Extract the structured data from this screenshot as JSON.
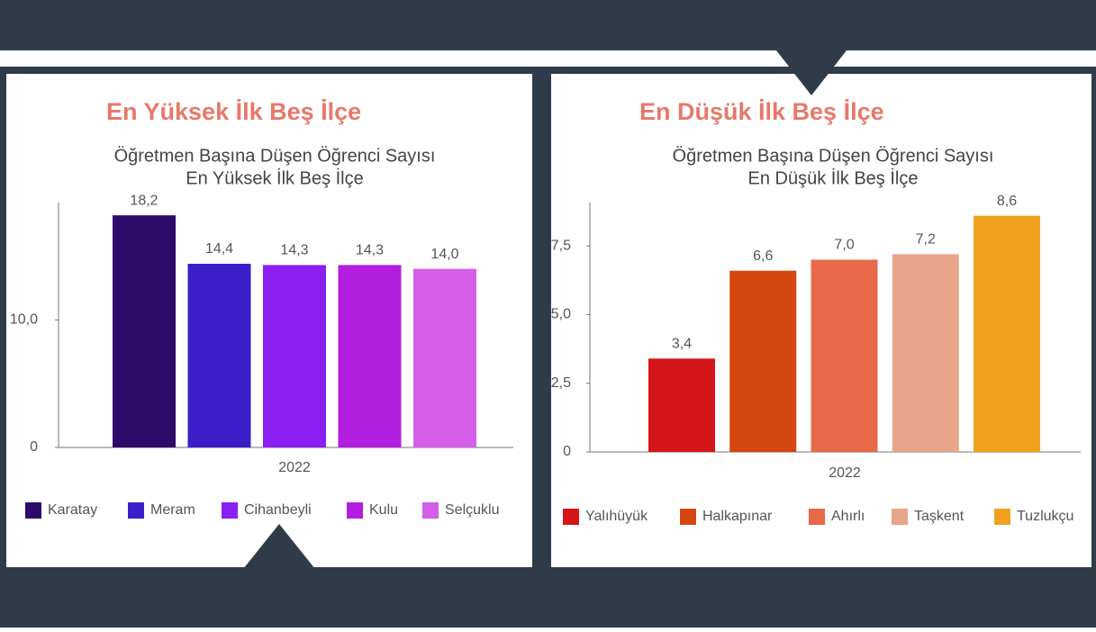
{
  "chart_data": [
    {
      "type": "bar",
      "heading": "En Yüksek İlk Beş İlçe",
      "title": [
        "Öğretmen Başına Düşen Öğrenci Sayısı",
        "En Yüksek İlk Beş İlçe"
      ],
      "categories": [
        "2022"
      ],
      "series": [
        {
          "name": "Karatay",
          "color": "#2e0a6b",
          "values": [
            18.2
          ],
          "value_labels": [
            "18,2"
          ]
        },
        {
          "name": "Meram",
          "color": "#3c1ec8",
          "values": [
            14.4
          ],
          "value_labels": [
            "14,4"
          ]
        },
        {
          "name": "Cihanbeyli",
          "color": "#8b1ef2",
          "values": [
            14.3
          ],
          "value_labels": [
            "14,3"
          ]
        },
        {
          "name": "Kulu",
          "color": "#b21ee0",
          "values": [
            14.3
          ],
          "value_labels": [
            "14,3"
          ]
        },
        {
          "name": "Selçuklu",
          "color": "#d45ee8",
          "values": [
            14.0
          ],
          "value_labels": [
            "14,0"
          ]
        }
      ],
      "ylim": [
        0,
        19.2
      ],
      "yticks": [
        0,
        {
          "value": 10,
          "label": "10,0"
        }
      ]
    },
    {
      "type": "bar",
      "heading": "En Düşük İlk Beş İlçe",
      "title": [
        "Öğretmen Başına Düşen Öğrenci Sayısı",
        "En Düşük İlk Beş İlçe"
      ],
      "categories": [
        "2022"
      ],
      "series": [
        {
          "name": "Yalıhüyük",
          "color": "#d4161b",
          "values": [
            3.4
          ],
          "value_labels": [
            "3,4"
          ]
        },
        {
          "name": "Halkapınar",
          "color": "#d4470f",
          "values": [
            6.6
          ],
          "value_labels": [
            "6,6"
          ]
        },
        {
          "name": "Ahırlı",
          "color": "#e8684a",
          "values": [
            7.0
          ],
          "value_labels": [
            "7,0"
          ]
        },
        {
          "name": "Taşkent",
          "color": "#e8a58a",
          "values": [
            7.2
          ],
          "value_labels": [
            "7,2"
          ]
        },
        {
          "name": "Tuzlukçu",
          "color": "#f2a11e",
          "values": [
            8.6
          ],
          "value_labels": [
            "8,6"
          ]
        }
      ],
      "ylim": [
        0,
        9.08
      ],
      "yticks": [
        0,
        {
          "value": 2.5,
          "label": "2,5"
        },
        {
          "value": 5,
          "label": "5,0"
        },
        {
          "value": 7.5,
          "label": "7,5"
        }
      ]
    }
  ]
}
